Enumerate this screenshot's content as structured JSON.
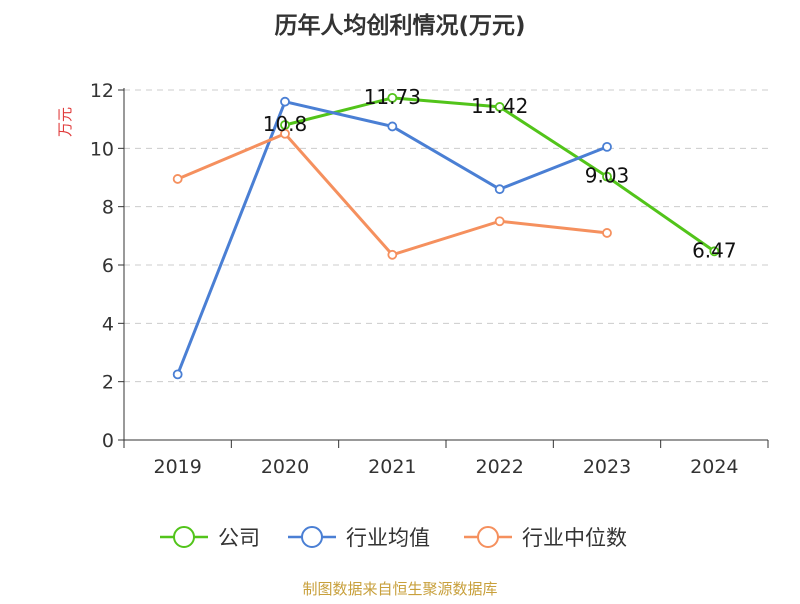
{
  "chart_data": {
    "type": "line",
    "title": "历年人均创利情况(万元)",
    "ylabel": "万元",
    "xlabel": "",
    "categories": [
      "2019",
      "2020",
      "2021",
      "2022",
      "2023",
      "2024"
    ],
    "ylim": [
      0,
      12
    ],
    "yticks": [
      0,
      2,
      4,
      6,
      8,
      10,
      12
    ],
    "grid": "horizontal-dashed",
    "legend_position": "bottom",
    "series": [
      {
        "name": "公司",
        "color": "#52c41a",
        "values": [
          null,
          10.8,
          11.73,
          11.42,
          9.03,
          6.47
        ],
        "labels": [
          null,
          "10.8",
          "11.73",
          "11.42",
          "9.03",
          "6.47"
        ]
      },
      {
        "name": "行业均值",
        "color": "#4a7fd4",
        "values": [
          2.25,
          11.6,
          10.75,
          8.6,
          10.05,
          null
        ]
      },
      {
        "name": "行业中位数",
        "color": "#f5905e",
        "values": [
          8.95,
          10.5,
          6.35,
          7.5,
          7.1,
          null
        ]
      }
    ],
    "source": "制图数据来自恒生聚源数据库",
    "source_color": "#c8a03c",
    "ylabel_color": "#e03c3c"
  }
}
